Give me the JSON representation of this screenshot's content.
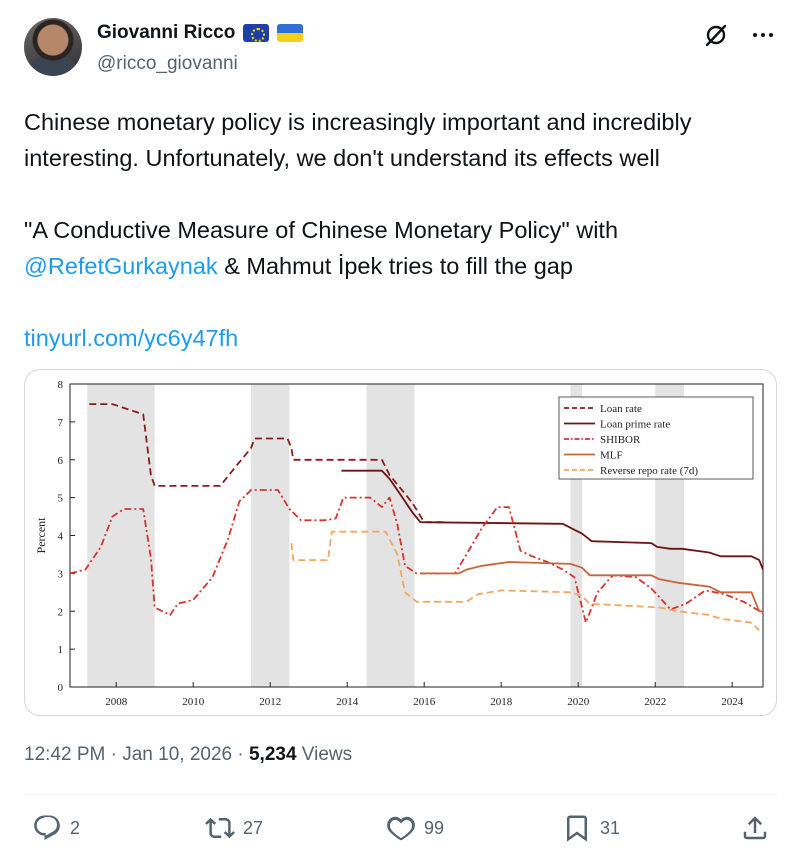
{
  "author": {
    "display_name": "Giovanni Ricco",
    "handle": "@ricco_giovanni",
    "avatar_icon": "person-photo-icon",
    "flags": [
      "eu-flag-icon",
      "ukraine-flag-icon"
    ]
  },
  "tweet": {
    "line1": "Chinese monetary policy is increasingly important and incredibly",
    "line2": "interesting. Unfortunately, we don't understand its effects well",
    "line3": "\"A Conductive Measure of Chinese Monetary Policy\" with",
    "mention": "@RefetGurkaynak",
    "line4_rest": " & Mahmut İpek tries to fill the gap",
    "url": "tinyurl.com/yc6y47fh"
  },
  "meta": {
    "time": "12:42 PM",
    "sep1": " · ",
    "date": "Jan 10, 2026",
    "sep2": " · ",
    "views_count": "5,234",
    "views_label": " Views"
  },
  "actions": {
    "replies": "2",
    "reposts": "27",
    "likes": "99",
    "bookmarks": "31"
  },
  "colors": {
    "loan_rate": "#8b1a1a",
    "loan_prime_rate": "#6b1414",
    "shibor": "#d6332e",
    "mlf": "#c8643a",
    "reverse_repo": "#f0a860",
    "shading": "#e3e3e3"
  },
  "chart_data": {
    "type": "line",
    "ylabel": "Percent",
    "xlabel": "",
    "ylim": [
      0,
      8
    ],
    "xlim": [
      2006.8,
      2024.8
    ],
    "yticks": [
      "0",
      "1",
      "2",
      "3",
      "4",
      "5",
      "6",
      "7",
      "8"
    ],
    "xticks": [
      "2008",
      "2010",
      "2012",
      "2014",
      "2016",
      "2018",
      "2020",
      "2022",
      "2024"
    ],
    "legend_position": "top-right",
    "grid": false,
    "shaded_periods": [
      [
        2007.25,
        2009.0
      ],
      [
        2011.5,
        2012.5
      ],
      [
        2014.5,
        2015.75
      ],
      [
        2019.8,
        2020.1
      ],
      [
        2022.0,
        2022.75
      ]
    ],
    "series": [
      {
        "name": "Loan rate",
        "style": "dashed",
        "points": [
          [
            2007.3,
            7.47
          ],
          [
            2007.9,
            7.47
          ],
          [
            2008.7,
            7.2
          ],
          [
            2008.9,
            5.6
          ],
          [
            2009.0,
            5.31
          ],
          [
            2010.7,
            5.31
          ],
          [
            2010.9,
            5.56
          ],
          [
            2011.1,
            5.81
          ],
          [
            2011.3,
            6.06
          ],
          [
            2011.5,
            6.31
          ],
          [
            2011.6,
            6.56
          ],
          [
            2012.45,
            6.56
          ],
          [
            2012.55,
            6.31
          ],
          [
            2012.6,
            6.0
          ],
          [
            2014.9,
            6.0
          ],
          [
            2015.1,
            5.6
          ],
          [
            2015.3,
            5.35
          ],
          [
            2015.5,
            5.1
          ],
          [
            2015.7,
            4.85
          ],
          [
            2015.85,
            4.6
          ],
          [
            2016.0,
            4.35
          ],
          [
            2016.5,
            4.35
          ]
        ]
      },
      {
        "name": "Loan prime rate",
        "style": "solid",
        "points": [
          [
            2013.85,
            5.71
          ],
          [
            2014.9,
            5.71
          ],
          [
            2015.1,
            5.5
          ],
          [
            2015.3,
            5.2
          ],
          [
            2015.5,
            4.9
          ],
          [
            2015.7,
            4.6
          ],
          [
            2015.9,
            4.35
          ],
          [
            2019.6,
            4.31
          ],
          [
            2019.9,
            4.15
          ],
          [
            2020.1,
            4.05
          ],
          [
            2020.35,
            3.85
          ],
          [
            2021.9,
            3.8
          ],
          [
            2022.05,
            3.7
          ],
          [
            2022.4,
            3.65
          ],
          [
            2022.7,
            3.65
          ],
          [
            2023.4,
            3.55
          ],
          [
            2023.7,
            3.45
          ],
          [
            2024.5,
            3.45
          ],
          [
            2024.7,
            3.35
          ],
          [
            2024.8,
            3.1
          ]
        ]
      },
      {
        "name": "SHIBOR",
        "style": "dashdot",
        "points": [
          [
            2006.8,
            3.0
          ],
          [
            2007.2,
            3.1
          ],
          [
            2007.6,
            3.7
          ],
          [
            2007.9,
            4.5
          ],
          [
            2008.2,
            4.7
          ],
          [
            2008.7,
            4.7
          ],
          [
            2008.9,
            3.4
          ],
          [
            2009.0,
            2.1
          ],
          [
            2009.4,
            1.9
          ],
          [
            2009.6,
            2.2
          ],
          [
            2010.0,
            2.3
          ],
          [
            2010.5,
            2.9
          ],
          [
            2010.9,
            3.9
          ],
          [
            2011.2,
            4.9
          ],
          [
            2011.5,
            5.2
          ],
          [
            2012.2,
            5.2
          ],
          [
            2012.5,
            4.7
          ],
          [
            2012.8,
            4.4
          ],
          [
            2013.4,
            4.4
          ],
          [
            2013.7,
            4.45
          ],
          [
            2013.9,
            5.0
          ],
          [
            2014.6,
            5.0
          ],
          [
            2014.9,
            4.75
          ],
          [
            2015.1,
            5.0
          ],
          [
            2015.3,
            4.3
          ],
          [
            2015.5,
            3.2
          ],
          [
            2015.8,
            3.0
          ],
          [
            2016.8,
            3.0
          ],
          [
            2017.1,
            3.5
          ],
          [
            2017.5,
            4.2
          ],
          [
            2017.9,
            4.75
          ],
          [
            2018.2,
            4.75
          ],
          [
            2018.5,
            3.6
          ],
          [
            2018.8,
            3.45
          ],
          [
            2019.2,
            3.3
          ],
          [
            2019.6,
            3.1
          ],
          [
            2019.9,
            2.9
          ],
          [
            2020.2,
            1.7
          ],
          [
            2020.5,
            2.5
          ],
          [
            2020.9,
            2.95
          ],
          [
            2021.5,
            2.9
          ],
          [
            2021.9,
            2.6
          ],
          [
            2022.4,
            2.05
          ],
          [
            2022.8,
            2.2
          ],
          [
            2023.3,
            2.55
          ],
          [
            2023.8,
            2.45
          ],
          [
            2024.3,
            2.25
          ],
          [
            2024.8,
            1.95
          ]
        ]
      },
      {
        "name": "MLF",
        "style": "solid",
        "points": [
          [
            2015.9,
            3.0
          ],
          [
            2016.9,
            3.0
          ],
          [
            2017.1,
            3.1
          ],
          [
            2017.5,
            3.2
          ],
          [
            2018.2,
            3.3
          ],
          [
            2019.8,
            3.25
          ],
          [
            2020.1,
            3.15
          ],
          [
            2020.3,
            2.95
          ],
          [
            2021.9,
            2.95
          ],
          [
            2022.1,
            2.85
          ],
          [
            2022.6,
            2.75
          ],
          [
            2023.4,
            2.65
          ],
          [
            2023.7,
            2.5
          ],
          [
            2024.5,
            2.5
          ],
          [
            2024.7,
            2.0
          ],
          [
            2024.8,
            2.0
          ]
        ]
      },
      {
        "name": "Reverse repo rate (7d)",
        "style": "dashed",
        "points": [
          [
            2012.55,
            3.8
          ],
          [
            2012.6,
            3.35
          ],
          [
            2013.5,
            3.35
          ],
          [
            2013.6,
            4.1
          ],
          [
            2015.0,
            4.1
          ],
          [
            2015.3,
            3.5
          ],
          [
            2015.5,
            2.5
          ],
          [
            2015.8,
            2.25
          ],
          [
            2017.1,
            2.25
          ],
          [
            2017.4,
            2.45
          ],
          [
            2018.0,
            2.55
          ],
          [
            2019.8,
            2.5
          ],
          [
            2020.1,
            2.4
          ],
          [
            2020.3,
            2.2
          ],
          [
            2022.1,
            2.1
          ],
          [
            2022.6,
            2.0
          ],
          [
            2023.4,
            1.9
          ],
          [
            2023.7,
            1.8
          ],
          [
            2024.5,
            1.7
          ],
          [
            2024.7,
            1.5
          ]
        ]
      }
    ]
  }
}
